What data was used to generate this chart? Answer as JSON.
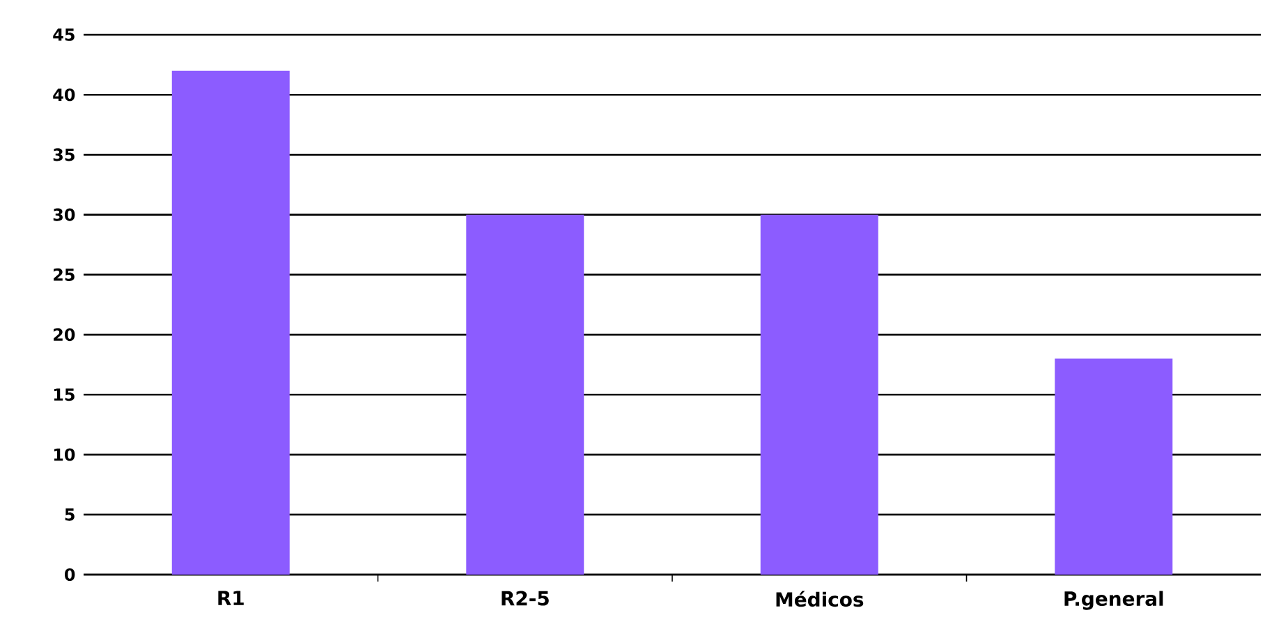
{
  "chart_data": {
    "type": "bar",
    "categories": [
      "R1",
      "R2-5",
      "Médicos",
      "P.general"
    ],
    "values": [
      42,
      30,
      30,
      18
    ],
    "color": "#8c5cff",
    "ylim": [
      0,
      45
    ],
    "yticks": [
      0,
      5,
      10,
      15,
      20,
      25,
      30,
      35,
      40,
      45
    ],
    "grid": "y"
  }
}
